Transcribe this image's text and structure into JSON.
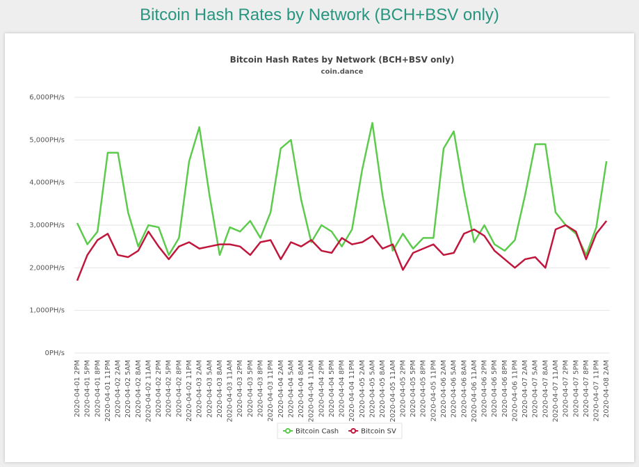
{
  "page_title": "Bitcoin Hash Rates by Network (BCH+BSV only)",
  "chart_data": {
    "type": "line",
    "title": "Bitcoin Hash Rates by Network (BCH+BSV only)",
    "subtitle": "coin.dance",
    "categories": [
      "2020-04-01 2PM",
      "2020-04-01 5PM",
      "2020-04-01 8PM",
      "2020-04-01 11PM",
      "2020-04-02 2AM",
      "2020-04-02 5AM",
      "2020-04-02 8AM",
      "2020-04-02 11AM",
      "2020-04-02 2PM",
      "2020-04-02 5PM",
      "2020-04-02 8PM",
      "2020-04-02 11PM",
      "2020-04-03 2AM",
      "2020-04-03 5AM",
      "2020-04-03 8AM",
      "2020-04-03 11AM",
      "2020-04-03 2PM",
      "2020-04-03 5PM",
      "2020-04-03 8PM",
      "2020-04-03 11PM",
      "2020-04-04 2AM",
      "2020-04-04 5AM",
      "2020-04-04 8AM",
      "2020-04-04 11AM",
      "2020-04-04 2PM",
      "2020-04-04 5PM",
      "2020-04-04 8PM",
      "2020-04-04 11PM",
      "2020-04-05 2AM",
      "2020-04-05 5AM",
      "2020-04-05 8AM",
      "2020-04-05 11AM",
      "2020-04-05 2PM",
      "2020-04-05 5PM",
      "2020-04-05 8PM",
      "2020-04-05 11PM",
      "2020-04-06 2AM",
      "2020-04-06 5AM",
      "2020-04-06 8AM",
      "2020-04-06 11AM",
      "2020-04-06 2PM",
      "2020-04-06 5PM",
      "2020-04-06 8PM",
      "2020-04-06 11PM",
      "2020-04-07 2AM",
      "2020-04-07 5AM",
      "2020-04-07 8AM",
      "2020-04-07 11AM",
      "2020-04-07 2PM",
      "2020-04-07 5PM",
      "2020-04-07 8PM",
      "2020-04-07 11PM",
      "2020-04-08 2AM"
    ],
    "series": [
      {
        "name": "Bitcoin Cash",
        "color": "#5ccb4c",
        "values": [
          3050,
          2550,
          2850,
          4700,
          4700,
          3300,
          2500,
          3000,
          2950,
          2300,
          2700,
          4500,
          5300,
          3700,
          2300,
          2950,
          2850,
          3100,
          2700,
          3300,
          4800,
          5000,
          3600,
          2600,
          3000,
          2850,
          2500,
          2900,
          4300,
          5400,
          3700,
          2400,
          2800,
          2450,
          2700,
          2700,
          4800,
          5200,
          3800,
          2600,
          3000,
          2550,
          2400,
          2650,
          3700,
          4900,
          4900,
          3300,
          3000,
          2800,
          2300,
          2950,
          4500
        ]
      },
      {
        "name": "Bitcoin SV",
        "color": "#c0163c",
        "values": [
          1700,
          2300,
          2650,
          2800,
          2300,
          2250,
          2400,
          2850,
          2500,
          2200,
          2500,
          2600,
          2450,
          2500,
          2550,
          2550,
          2500,
          2300,
          2600,
          2650,
          2200,
          2600,
          2500,
          2650,
          2400,
          2350,
          2700,
          2550,
          2600,
          2750,
          2450,
          2550,
          1950,
          2350,
          2450,
          2550,
          2300,
          2350,
          2800,
          2900,
          2750,
          2400,
          2200,
          2000,
          2200,
          2250,
          2000,
          2900,
          3000,
          2850,
          2200,
          2800,
          3100
        ]
      }
    ],
    "ylim": [
      0,
      6000
    ],
    "yticks": [
      {
        "value": 0,
        "label": "0PH/s"
      },
      {
        "value": 1000,
        "label": "1,000PH/s"
      },
      {
        "value": 2000,
        "label": "2,000PH/s"
      },
      {
        "value": 3000,
        "label": "3,000PH/s"
      },
      {
        "value": 4000,
        "label": "4,000PH/s"
      },
      {
        "value": 5000,
        "label": "5,000PH/s"
      },
      {
        "value": 6000,
        "label": "6,000PH/s"
      }
    ],
    "grid": true,
    "legend": "bottom"
  }
}
